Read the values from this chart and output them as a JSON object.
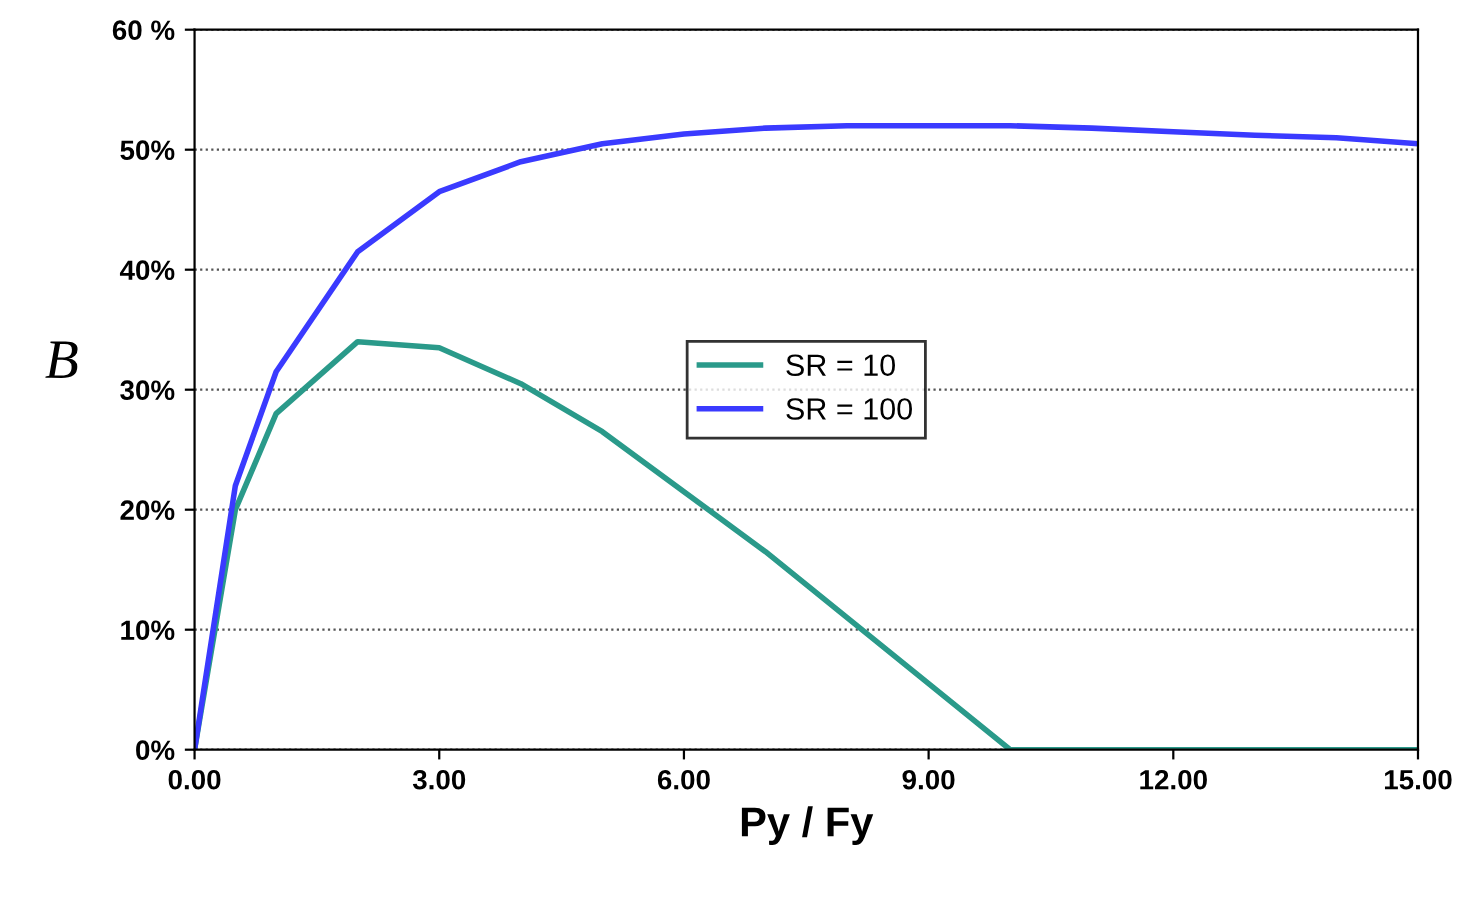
{
  "chart_data": {
    "type": "line",
    "xlabel": "Py / Fy",
    "ylabel": "B",
    "series": [
      {
        "name": "SR = 10",
        "color": "#2a9a8a",
        "x": [
          0,
          0.5,
          1,
          2,
          3,
          4,
          5,
          6,
          7,
          8,
          9,
          10,
          15
        ],
        "values": [
          0,
          20,
          28,
          34,
          33.5,
          30.5,
          26.5,
          21.5,
          16.5,
          11,
          5.5,
          0,
          0
        ]
      },
      {
        "name": "SR = 100",
        "color": "#3a3aff",
        "x": [
          0,
          0.5,
          1,
          2,
          3,
          4,
          5,
          6,
          7,
          8,
          9,
          10,
          11,
          12,
          13,
          14,
          15
        ],
        "values": [
          0,
          22,
          31.5,
          41.5,
          46.5,
          49,
          50.5,
          51.3,
          51.8,
          52,
          52,
          52,
          51.8,
          51.5,
          51.2,
          51,
          50.5
        ]
      }
    ],
    "xlim": [
      0,
      15
    ],
    "xticks": [
      {
        "value": 0,
        "label": "0.00"
      },
      {
        "value": 3,
        "label": "3.00"
      },
      {
        "value": 6,
        "label": "6.00"
      },
      {
        "value": 9,
        "label": "9.00"
      },
      {
        "value": 12,
        "label": "12.00"
      },
      {
        "value": 15,
        "label": "15.00"
      }
    ],
    "ylim": [
      0,
      60
    ],
    "yticks": [
      {
        "value": 0,
        "label": "0%"
      },
      {
        "value": 10,
        "label": "10%"
      },
      {
        "value": 20,
        "label": "20%"
      },
      {
        "value": 30,
        "label": "30%"
      },
      {
        "value": 40,
        "label": "40%"
      },
      {
        "value": 50,
        "label": "50%"
      },
      {
        "value": 60,
        "label": "60 %"
      }
    ],
    "grid": "y",
    "legend": "center",
    "marker": "none",
    "line_style": "solid"
  }
}
